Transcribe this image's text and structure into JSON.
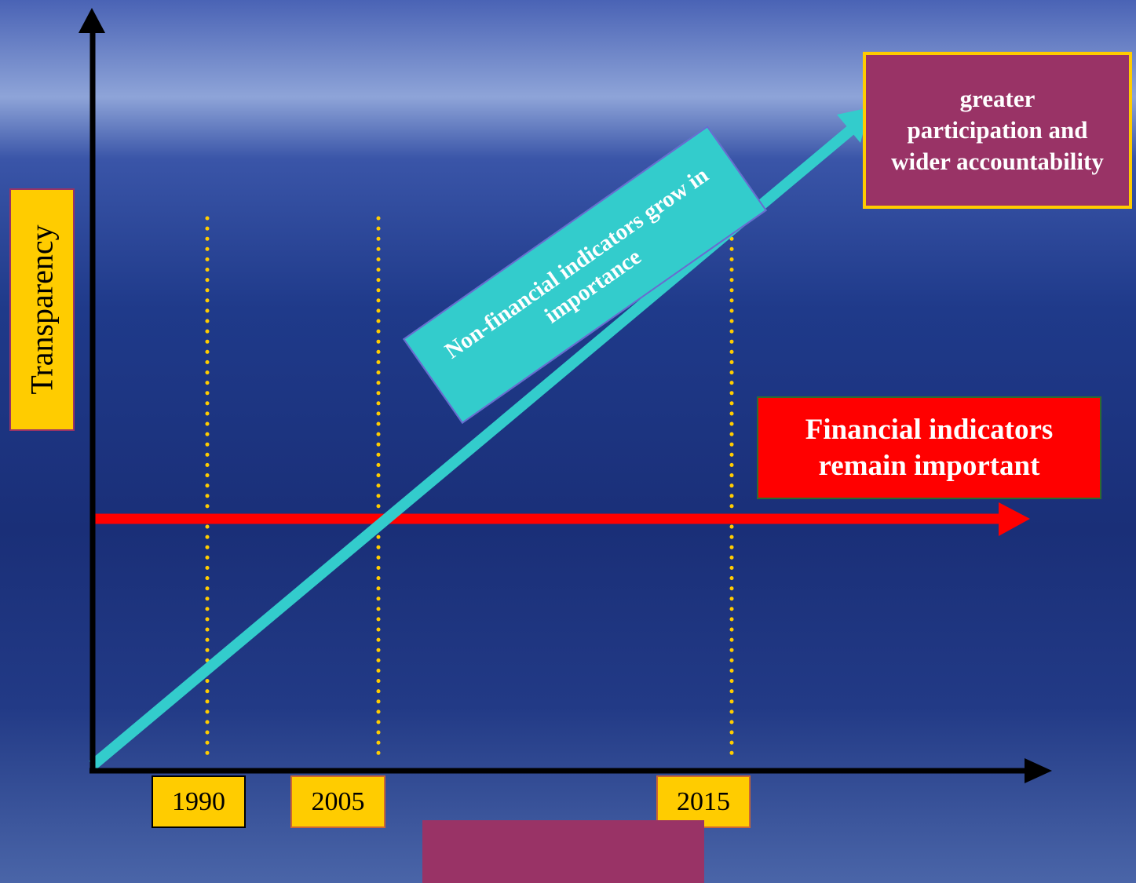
{
  "y_axis_label": "Transparency",
  "years": [
    "1990",
    "2005",
    "2015"
  ],
  "callouts": {
    "outcome": "greater participation and wider accountability",
    "non_financial": "Non-financial indicators grow in importance",
    "financial": "Financial indicators remain important"
  }
}
